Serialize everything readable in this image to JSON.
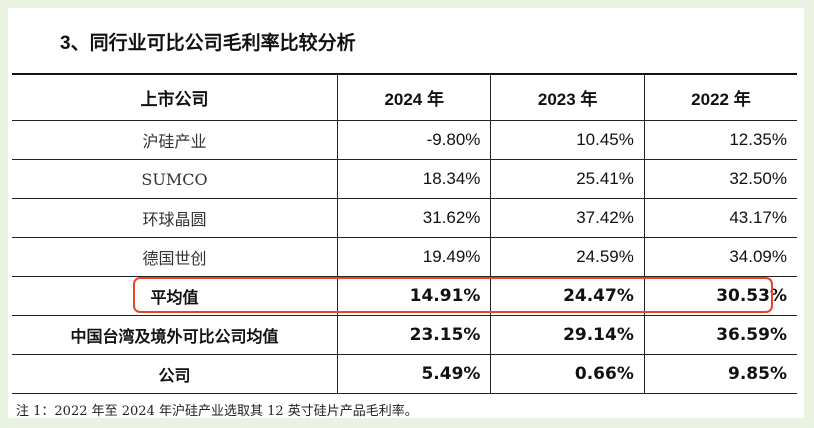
{
  "header": {
    "title": "3、同行业可比公司毛利率比较分析"
  },
  "table": {
    "columns": [
      "上市公司",
      "2024 年",
      "2023 年",
      "2022 年"
    ],
    "rows": [
      [
        "沪硅产业",
        "-9.80%",
        "10.45%",
        "12.35%"
      ],
      [
        "SUMCO",
        "18.34%",
        "25.41%",
        "32.50%"
      ],
      [
        "环球晶圆",
        "31.62%",
        "37.42%",
        "43.17%"
      ],
      [
        "德国世创",
        "19.49%",
        "24.59%",
        "34.09%"
      ],
      [
        "平均值",
        "14.91%",
        "24.47%",
        "30.53%"
      ],
      [
        "中国台湾及境外可比公司均值",
        "23.15%",
        "29.14%",
        "36.59%"
      ],
      [
        "公司",
        "5.49%",
        "0.66%",
        "9.85%"
      ]
    ]
  },
  "footnote": "注 1：2022 年至 2024 年沪硅产业选取其 12 英寸硅片产品毛利率。"
}
